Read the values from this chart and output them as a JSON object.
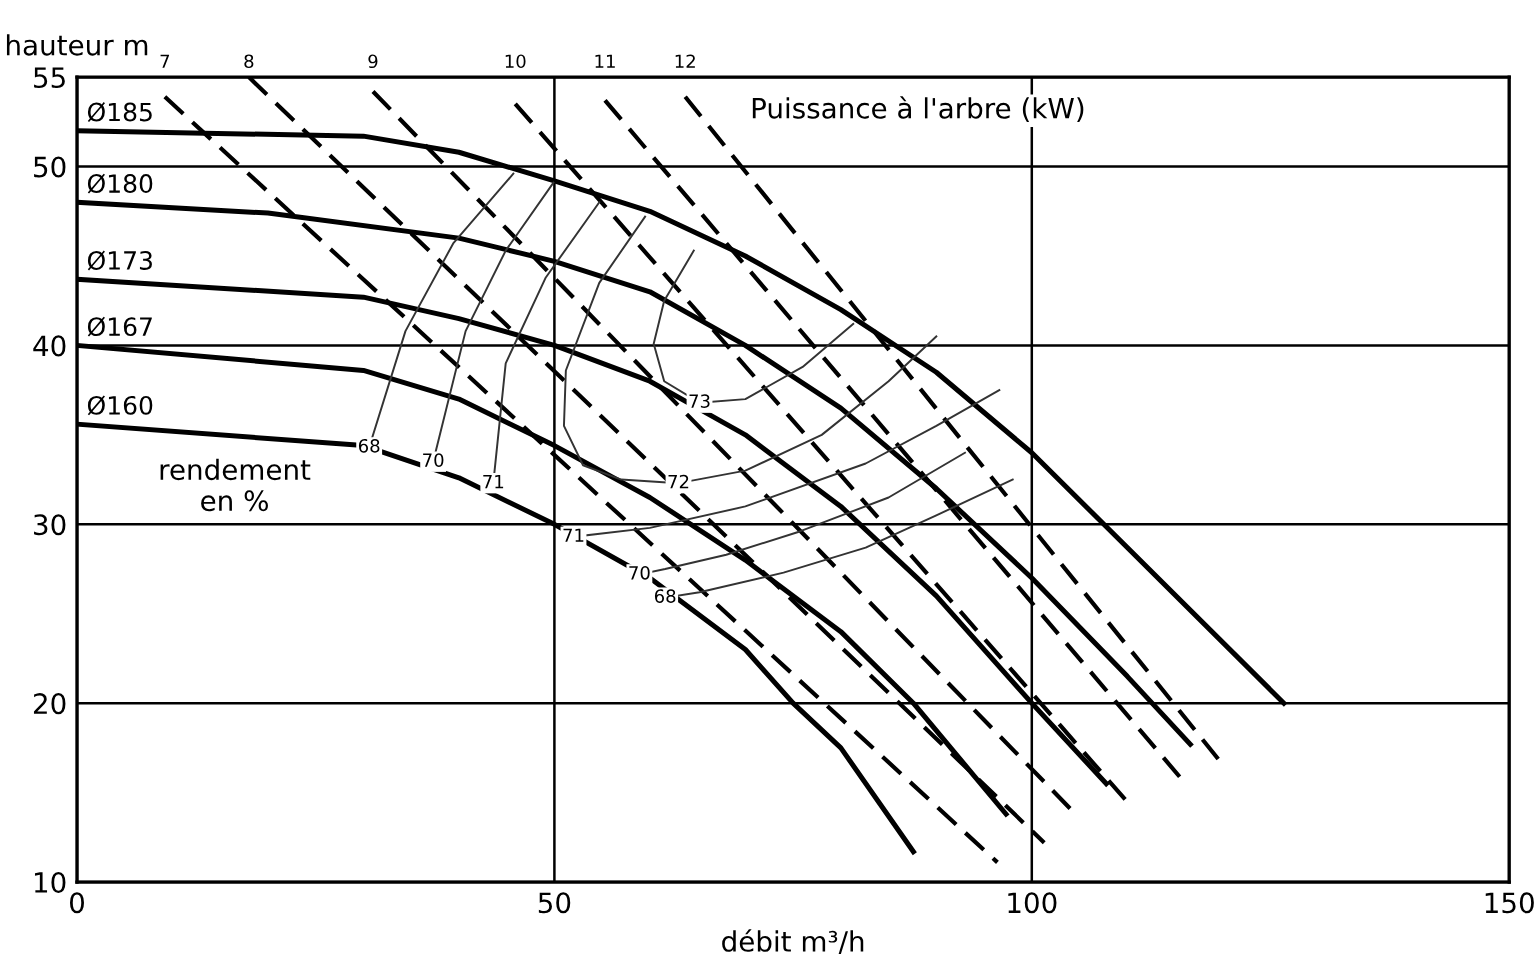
{
  "chart_data": {
    "type": "line",
    "xlabel": "débit m³/h",
    "ylabel": "hauteur m",
    "xlim": [
      0,
      150
    ],
    "ylim": [
      10,
      55
    ],
    "xticks": [
      0,
      50,
      100,
      150
    ],
    "yticks": [
      10,
      20,
      30,
      40,
      50,
      55
    ],
    "grid": true,
    "marker": "none",
    "series": [
      {
        "name": "Ø185",
        "color": "#000000",
        "line_style": "solid",
        "x": [
          0,
          30,
          40,
          50,
          60,
          70,
          80,
          90,
          100,
          110,
          126.4
        ],
        "values": [
          52,
          51.7,
          50.8,
          49.2,
          47.5,
          45,
          42,
          38.5,
          34,
          28.7,
          20
        ]
      },
      {
        "name": "Ø180",
        "color": "#000000",
        "line_style": "solid",
        "x": [
          0,
          20,
          40,
          50,
          60,
          70,
          80,
          90,
          100,
          110,
          116.6
        ],
        "values": [
          48,
          47.4,
          46,
          44.7,
          43,
          40,
          36.5,
          32,
          27,
          21.5,
          17.7
        ]
      },
      {
        "name": "Ø173",
        "color": "#000000",
        "line_style": "solid",
        "x": [
          0,
          30,
          40,
          50,
          60,
          70,
          80,
          90,
          100,
          107.8
        ],
        "values": [
          43.7,
          42.7,
          41.5,
          40,
          38,
          35,
          31,
          26,
          20,
          15.5
        ]
      },
      {
        "name": "Ø167",
        "color": "#000000",
        "line_style": "solid",
        "x": [
          0,
          30,
          40,
          50,
          60,
          70,
          80,
          87.6,
          97.3
        ],
        "values": [
          40,
          38.6,
          37,
          34.4,
          31.5,
          28,
          24,
          20,
          13.8
        ]
      },
      {
        "name": "Ø160",
        "color": "#000000",
        "line_style": "solid",
        "x": [
          0,
          30,
          40,
          50,
          60,
          70,
          75,
          80,
          87.6
        ],
        "values": [
          35.6,
          34.4,
          32.6,
          30,
          27,
          23,
          20,
          17.5,
          11.7
        ]
      },
      {
        "name": "7",
        "color": "#000000",
        "line_style": "dashed",
        "x": [
          9.2,
          96.4
        ],
        "values": [
          53.9,
          11.1
        ]
      },
      {
        "name": "8",
        "color": "#000000",
        "line_style": "dashed",
        "x": [
          18,
          101.3
        ],
        "values": [
          55,
          12.2
        ]
      },
      {
        "name": "9",
        "color": "#000000",
        "line_style": "dashed",
        "x": [
          31,
          104.4
        ],
        "values": [
          54.2,
          13.9
        ]
      },
      {
        "name": "10",
        "color": "#000000",
        "line_style": "dashed",
        "x": [
          45.9,
          110.3
        ],
        "values": [
          53.5,
          14.3
        ]
      },
      {
        "name": "11",
        "color": "#000000",
        "line_style": "dashed",
        "x": [
          55.3,
          116.1
        ],
        "values": [
          53.7,
          15.5
        ]
      },
      {
        "name": "12",
        "color": "#000000",
        "line_style": "dashed",
        "x": [
          63.7,
          120.1
        ],
        "values": [
          53.9,
          16.5
        ]
      },
      {
        "name": "68",
        "color": "#333333",
        "line_style": "solid",
        "x": [
          30.6,
          34.4,
          39.4,
          45.7
        ],
        "values": [
          34.3,
          40.8,
          45.7,
          49.6
        ]
      },
      {
        "name": "70",
        "color": "#333333",
        "line_style": "solid",
        "x": [
          37.3,
          40.7,
          44.9,
          49.9
        ],
        "values": [
          33.5,
          40.8,
          45.3,
          49.1
        ]
      },
      {
        "name": "71",
        "color": "#333333",
        "line_style": "solid",
        "x": [
          43.6,
          44.9,
          49.1,
          54.7
        ],
        "values": [
          32.3,
          39,
          43.8,
          48
        ]
      },
      {
        "name": "72",
        "color": "#333333",
        "line_style": "solid",
        "x": [
          59.5,
          54.7,
          51.2,
          51,
          53,
          57,
          63,
          70,
          78,
          85,
          90
        ],
        "values": [
          47.2,
          43.5,
          38.6,
          35.5,
          33.3,
          32.5,
          32.3,
          33,
          35,
          38,
          40.5
        ]
      },
      {
        "name": "73",
        "color": "#333333",
        "line_style": "solid",
        "x": [
          64.6,
          61.5,
          60.4,
          61.5,
          65.2,
          70,
          76,
          81.3
        ],
        "values": [
          45.3,
          42.5,
          40.1,
          38,
          36.8,
          37,
          38.8,
          41.2
        ]
      },
      {
        "name": "71",
        "color": "#333333",
        "line_style": "solid",
        "x": [
          52,
          60,
          70,
          82.6,
          90,
          96.6
        ],
        "values": [
          29.3,
          29.8,
          31,
          33.4,
          35.5,
          37.5
        ]
      },
      {
        "name": "70",
        "color": "#333333",
        "line_style": "solid",
        "x": [
          58.9,
          61.6,
          68,
          75.7,
          85,
          93
        ],
        "values": [
          27.2,
          27.5,
          28.3,
          29.6,
          31.5,
          34
        ]
      },
      {
        "name": "68",
        "color": "#333333",
        "line_style": "solid",
        "x": [
          61.6,
          65.2,
          74,
          82.6,
          90,
          98
        ],
        "values": [
          25.9,
          26.2,
          27.3,
          28.7,
          30.5,
          32.5
        ]
      }
    ],
    "annotations": [
      "Puissance à l'arbre (kW)",
      "rendement\nen %"
    ]
  }
}
